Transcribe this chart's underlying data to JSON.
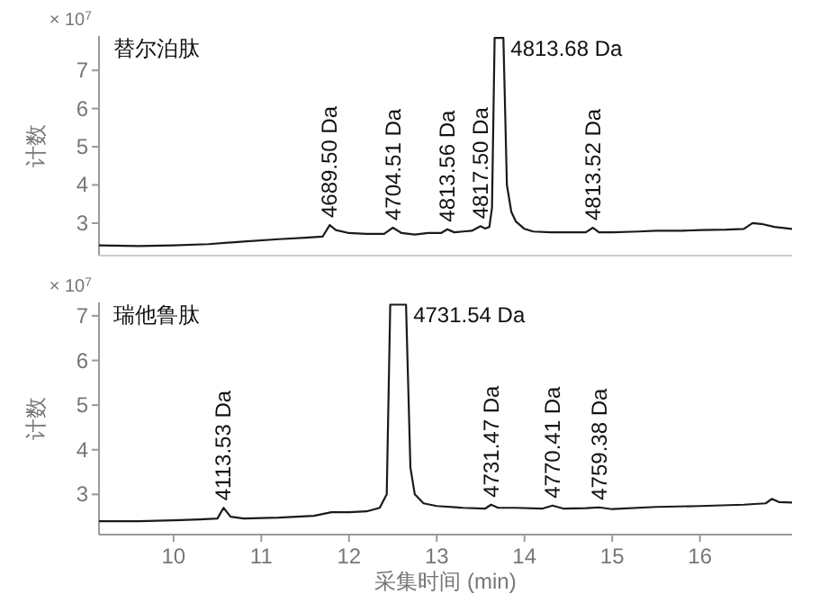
{
  "chart_data": [
    {
      "type": "line",
      "title": "替尔泊肽",
      "ylabel": "计数",
      "tick_labels": "y",
      "grid": false,
      "marker": "none",
      "line_style": "solid",
      "xlim": [
        9.15,
        17.05
      ],
      "ylim": [
        2.15,
        7.9
      ],
      "xticks": [
        10,
        11,
        12,
        13,
        14,
        15,
        16
      ],
      "yticks": [
        3,
        4,
        5,
        6,
        7
      ],
      "series": [
        {
          "color": "#1a1a1a",
          "x": [
            9.15,
            9.6,
            10.0,
            10.4,
            10.8,
            11.2,
            11.5,
            11.7,
            11.78,
            11.85,
            12.0,
            12.2,
            12.4,
            12.5,
            12.6,
            12.75,
            12.9,
            13.05,
            13.12,
            13.2,
            13.3,
            13.4,
            13.5,
            13.55,
            13.6,
            13.63,
            13.66,
            13.76,
            13.8,
            13.85,
            13.9,
            14.0,
            14.1,
            14.3,
            14.5,
            14.7,
            14.78,
            14.85,
            15.0,
            15.3,
            15.5,
            15.8,
            16.0,
            16.3,
            16.5,
            16.6,
            16.7,
            16.85,
            17.05
          ],
          "values": [
            2.42,
            2.4,
            2.42,
            2.45,
            2.52,
            2.58,
            2.62,
            2.65,
            2.95,
            2.82,
            2.74,
            2.72,
            2.72,
            2.88,
            2.74,
            2.7,
            2.74,
            2.74,
            2.84,
            2.76,
            2.78,
            2.8,
            2.92,
            2.86,
            2.9,
            3.4,
            7.85,
            7.85,
            4.0,
            3.3,
            3.05,
            2.85,
            2.78,
            2.76,
            2.76,
            2.76,
            2.88,
            2.76,
            2.76,
            2.78,
            2.8,
            2.8,
            2.82,
            2.83,
            2.85,
            3.0,
            2.98,
            2.9,
            2.85
          ]
        }
      ],
      "annotations": [
        "× 10$^{7}$",
        {
          "text": "4689.50 Da",
          "x": 11.78,
          "y": 2.95
        },
        {
          "text": "4704.51 Da",
          "x": 12.5,
          "y": 2.88
        },
        {
          "text": "4813.56 Da",
          "x": 13.12,
          "y": 2.84
        },
        {
          "text": "4817.50 Da",
          "x": 13.5,
          "y": 2.92
        },
        {
          "text": "4813.68 Da",
          "x": 13.76,
          "y": 7.9
        },
        {
          "text": "4813.52 Da",
          "x": 14.78,
          "y": 2.88
        }
      ]
    },
    {
      "type": "line",
      "title": "瑞他鲁肽",
      "xlabel": "采集时间 (min)",
      "ylabel": "计数",
      "grid": false,
      "marker": "none",
      "line_style": "solid",
      "xlim": [
        9.15,
        17.05
      ],
      "ylim": [
        2.1,
        7.3
      ],
      "xticks": [
        10,
        11,
        12,
        13,
        14,
        15,
        16
      ],
      "yticks": [
        3,
        4,
        5,
        6,
        7
      ],
      "series": [
        {
          "color": "#1a1a1a",
          "x": [
            9.15,
            9.6,
            10.0,
            10.3,
            10.5,
            10.57,
            10.65,
            10.8,
            11.2,
            11.6,
            11.8,
            12.0,
            12.2,
            12.35,
            12.43,
            12.47,
            12.65,
            12.7,
            12.75,
            12.85,
            13.0,
            13.3,
            13.55,
            13.62,
            13.7,
            13.9,
            14.2,
            14.32,
            14.45,
            14.7,
            14.85,
            15.0,
            15.5,
            16.0,
            16.5,
            16.75,
            16.82,
            16.9,
            17.05
          ],
          "values": [
            2.4,
            2.4,
            2.42,
            2.44,
            2.46,
            2.7,
            2.5,
            2.46,
            2.48,
            2.52,
            2.6,
            2.6,
            2.62,
            2.7,
            3.0,
            7.25,
            7.25,
            3.6,
            3.0,
            2.8,
            2.74,
            2.7,
            2.68,
            2.77,
            2.7,
            2.7,
            2.68,
            2.75,
            2.68,
            2.69,
            2.71,
            2.67,
            2.72,
            2.74,
            2.77,
            2.8,
            2.9,
            2.83,
            2.82
          ]
        }
      ],
      "annotations": [
        "× 10$^{7}$",
        {
          "text": "4113.53 Da",
          "x": 10.57,
          "y": 2.7
        },
        {
          "text": "4731.54 Da",
          "x": 12.65,
          "y": 7.3
        },
        {
          "text": "4731.47 Da",
          "x": 13.62,
          "y": 2.77
        },
        {
          "text": "4770.41 Da",
          "x": 14.32,
          "y": 2.75
        },
        {
          "text": "4759.38 Da",
          "x": 14.85,
          "y": 2.71
        }
      ]
    }
  ]
}
